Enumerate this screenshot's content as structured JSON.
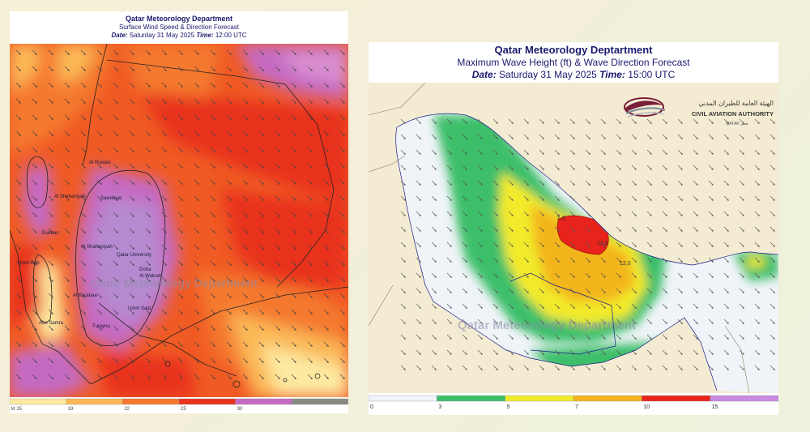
{
  "left": {
    "title": "Qatar Meteorology Department",
    "subtitle": "Surface Wind Speed & Direction Forecast",
    "date_label": "Date:",
    "date_value": "Saturday 31 May 2025",
    "time_label": "Time:",
    "time_value": "12:00 UTC",
    "watermark": "Qatar Meteorology Department",
    "places": [
      "Al Ruwais",
      "Al Shehaniyah",
      "Dukhan",
      "Umm Bab",
      "Qatar University",
      "Doha",
      "Al Wakrah",
      "Al Karanaa",
      "Umm Said",
      "Turayna",
      "Abu Samra",
      "Al Shahaniyah",
      "Sawdayat"
    ],
    "legend": {
      "ticks": [
        "kt 15",
        "19",
        "22",
        "25",
        "30"
      ],
      "colors": [
        "#fde9a0",
        "#fbb957",
        "#f4792e",
        "#e8321f",
        "#c56bc3",
        "#8a8a80"
      ]
    }
  },
  "right": {
    "title": "Qatar Meteorology Deptartment",
    "subtitle": "Maximum Wave Height (ft) & Wave Direction Forecast",
    "date_label": "Date:",
    "date_value": "Saturday 31 May 2025",
    "time_label": "Time:",
    "time_value": "15:00 UTC",
    "watermark": "Qatar Meteorology Department",
    "logo": {
      "arabic": "الهيئة العامة للطيران المدني",
      "english": "CIVIL AVIATION AUTHORITY",
      "country": "QATAR قطر"
    },
    "contour_labels": [
      "7.0",
      "12.0",
      "12.0"
    ],
    "legend": {
      "ticks": [
        "0",
        "3",
        "5",
        "7",
        "10",
        "15"
      ],
      "colors": [
        "#f0f4f8",
        "#3cbf6a",
        "#f2ea2c",
        "#f2b51e",
        "#e8231c",
        "#c98adf"
      ]
    }
  }
}
